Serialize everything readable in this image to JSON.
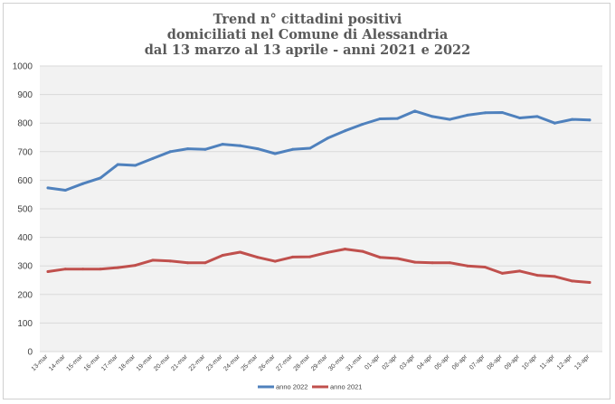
{
  "chart_data": {
    "type": "line",
    "title_lines": [
      "Trend n° cittadini positivi",
      "domiciliati nel Comune di Alessandria",
      "dal 13 marzo al 13 aprile - anni 2021 e 2022"
    ],
    "xlabel": "",
    "ylabel": "",
    "ylim": [
      0,
      1000
    ],
    "yticks": [
      0,
      100,
      200,
      300,
      400,
      500,
      600,
      700,
      800,
      900,
      1000
    ],
    "grid": true,
    "legend_position": "bottom",
    "categories": [
      "13-mar",
      "14-mar",
      "15-mar",
      "16-mar",
      "17-mar",
      "18-mar",
      "19-mar",
      "20-mar",
      "21-mar",
      "22-mar",
      "23-mar",
      "24-mar",
      "25-mar",
      "26-mar",
      "27-mar",
      "28-mar",
      "29-mar",
      "30-mar",
      "31-mar",
      "01-apr",
      "02-apr",
      "03-apr",
      "04-apr",
      "05-apr",
      "06-apr",
      "07-apr",
      "08-apr",
      "09-apr",
      "10-apr",
      "11-apr",
      "12-apr",
      "13-apr"
    ],
    "series": [
      {
        "name": "anno 2022",
        "color": "#4f81bd",
        "values": [
          573,
          565,
          588,
          608,
          655,
          652,
          676,
          700,
          710,
          708,
          726,
          721,
          710,
          693,
          708,
          712,
          747,
          773,
          796,
          815,
          816,
          842,
          823,
          813,
          828,
          836,
          837,
          818,
          823,
          800,
          813,
          811
        ]
      },
      {
        "name": "anno 2021",
        "color": "#c0504d",
        "values": [
          280,
          289,
          289,
          289,
          294,
          302,
          320,
          317,
          311,
          311,
          337,
          348,
          330,
          316,
          331,
          332,
          347,
          359,
          351,
          330,
          326,
          313,
          311,
          311,
          300,
          296,
          274,
          282,
          267,
          263,
          247,
          242
        ]
      }
    ]
  }
}
